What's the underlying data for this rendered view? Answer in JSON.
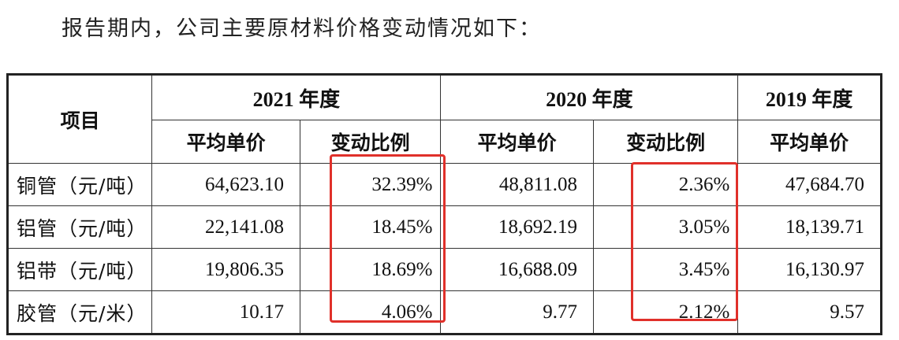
{
  "intro": "报告期内，公司主要原材料价格变动情况如下：",
  "headers": {
    "item": "项目",
    "y2021": "2021 年度",
    "y2020": "2020 年度",
    "y2019": "2019 年度",
    "avg_price": "平均单价",
    "change_ratio": "变动比例"
  },
  "rows": [
    {
      "name": "铜管（元/吨）",
      "p2021": "64,623.10",
      "c2021": "32.39%",
      "p2020": "48,811.08",
      "c2020": "2.36%",
      "p2019": "47,684.70"
    },
    {
      "name": "铝管（元/吨）",
      "p2021": "22,141.08",
      "c2021": "18.45%",
      "p2020": "18,692.19",
      "c2020": "3.05%",
      "p2019": "18,139.71"
    },
    {
      "name": "铝带（元/吨）",
      "p2021": "19,806.35",
      "c2021": "18.69%",
      "p2020": "16,688.09",
      "c2020": "3.45%",
      "p2019": "16,130.97"
    },
    {
      "name": "胶管（元/米）",
      "p2021": "10.17",
      "c2021": "4.06%",
      "p2020": "9.77",
      "c2020": "2.12%",
      "p2019": "9.57"
    }
  ],
  "highlight_color": "#e0302a"
}
